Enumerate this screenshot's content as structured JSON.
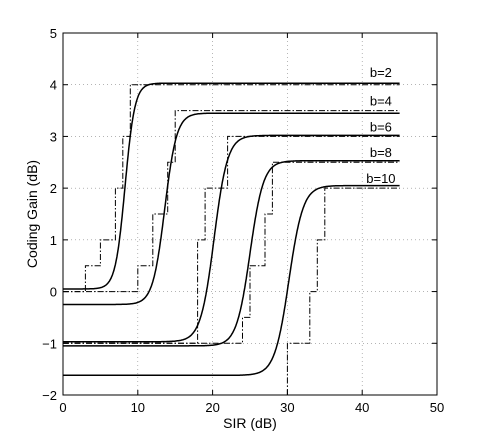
{
  "chart_data": {
    "type": "line",
    "title": "",
    "xlabel": "SIR (dB)",
    "ylabel": "Coding Gain (dB)",
    "xlim": [
      0,
      50
    ],
    "ylim": [
      -2,
      5
    ],
    "xticks": [
      0,
      10,
      20,
      30,
      40,
      50
    ],
    "yticks": [
      -2,
      -1,
      0,
      1,
      2,
      3,
      4,
      5
    ],
    "grid": true,
    "series": [
      {
        "name": "b=2",
        "smooth": {
          "low": 0.05,
          "high": 4.03,
          "center": 8.3,
          "width": 0.65,
          "x_end": 45
        },
        "step": [
          [
            0,
            0
          ],
          [
            3,
            0
          ],
          [
            3,
            0.5
          ],
          [
            5,
            0.5
          ],
          [
            5,
            1
          ],
          [
            7,
            1
          ],
          [
            7,
            2
          ],
          [
            8,
            2
          ],
          [
            8,
            3
          ],
          [
            9,
            3
          ],
          [
            9,
            4
          ],
          [
            45,
            4
          ]
        ]
      },
      {
        "name": "b=4",
        "smooth": {
          "low": -0.25,
          "high": 3.45,
          "center": 13.6,
          "width": 0.8,
          "x_end": 45
        },
        "step": [
          [
            0,
            0
          ],
          [
            10,
            0
          ],
          [
            10,
            0.5
          ],
          [
            12,
            0.5
          ],
          [
            12,
            1.5
          ],
          [
            14,
            1.5
          ],
          [
            14,
            2.5
          ],
          [
            15,
            2.5
          ],
          [
            15,
            3.5
          ],
          [
            45,
            3.5
          ]
        ]
      },
      {
        "name": "b=6",
        "smooth": {
          "low": -0.97,
          "high": 3.02,
          "center": 20.2,
          "width": 0.9,
          "x_end": 45
        },
        "step": [
          [
            0,
            -1
          ],
          [
            18,
            -1
          ],
          [
            18,
            1
          ],
          [
            19,
            1
          ],
          [
            19,
            2
          ],
          [
            22,
            2
          ],
          [
            22,
            3
          ],
          [
            45,
            3
          ]
        ]
      },
      {
        "name": "b=8",
        "smooth": {
          "low": -1.05,
          "high": 2.53,
          "center": 25.0,
          "width": 0.9,
          "x_end": 45
        },
        "step": [
          [
            0,
            -1
          ],
          [
            24,
            -1
          ],
          [
            24,
            -0.5
          ],
          [
            25,
            -0.5
          ],
          [
            25,
            0.5
          ],
          [
            27,
            0.5
          ],
          [
            27,
            1.5
          ],
          [
            28,
            1.5
          ],
          [
            28,
            2.5
          ],
          [
            45,
            2.5
          ]
        ]
      },
      {
        "name": "b=10",
        "smooth": {
          "low": -1.62,
          "high": 2.05,
          "center": 30.2,
          "width": 0.95,
          "x_end": 45
        },
        "step": [
          [
            30,
            -2
          ],
          [
            30,
            -1
          ],
          [
            33,
            -1
          ],
          [
            33,
            0
          ],
          [
            34,
            0
          ],
          [
            34,
            1
          ],
          [
            35,
            1
          ],
          [
            35,
            2
          ],
          [
            45,
            2
          ]
        ]
      }
    ],
    "labels": [
      {
        "text": "b=2",
        "x": 42.5,
        "y": 4.15
      },
      {
        "text": "b=4",
        "x": 42.5,
        "y": 3.6
      },
      {
        "text": "b=6",
        "x": 42.5,
        "y": 3.1
      },
      {
        "text": "b=8",
        "x": 42.5,
        "y": 2.6
      },
      {
        "text": "b=10",
        "x": 42.5,
        "y": 2.1
      }
    ],
    "legend": "none"
  }
}
